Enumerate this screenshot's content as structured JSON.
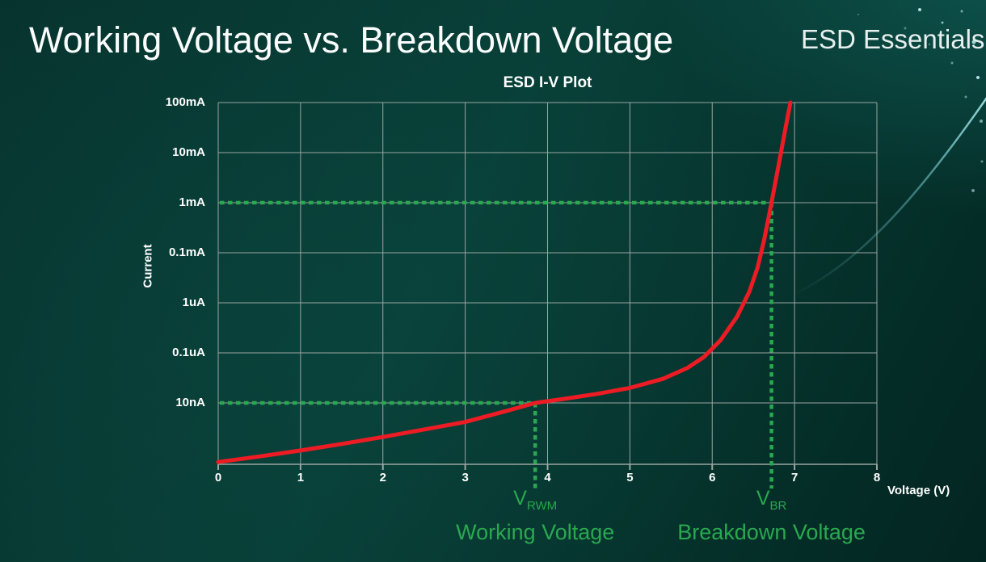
{
  "slide": {
    "title": "Working Voltage vs. Breakdown Voltage",
    "brand": "ESD Essentials"
  },
  "chart": {
    "colors": {
      "curve": "#ed1c24",
      "annotation": "#2aa84f",
      "grid": "#9aa5a2",
      "text": "#ffffff",
      "decor_cyan": "#7fd8e0",
      "background_top": "#0a423c",
      "background_bottom": "#03211f"
    }
  },
  "chart_data": {
    "type": "line",
    "title": "ESD I-V Plot",
    "xlabel": "Voltage (V)",
    "ylabel": "Current",
    "x_ticks": [
      0,
      1,
      2,
      3,
      4,
      5,
      6,
      7,
      8
    ],
    "xlim": [
      0,
      8
    ],
    "y_tick_labels": [
      "100mA",
      "10mA",
      "1mA",
      "0.1mA",
      "1uA",
      "0.1uA",
      "10nA"
    ],
    "y_scale": "logarithmic; one gridline per labeled decade, level 0 = 100mA (top), level 6 = 10nA",
    "grid": "on",
    "series": [
      {
        "name": "ESD I-V curve",
        "note": "points are [voltage_V, y_level] where y_level is position on the log current axis (0=100mA ... 6=10nA, 7.2=bottom axis)",
        "points": [
          [
            0,
            7.18
          ],
          [
            0.5,
            7.07
          ],
          [
            1,
            6.95
          ],
          [
            1.5,
            6.82
          ],
          [
            2,
            6.68
          ],
          [
            2.5,
            6.53
          ],
          [
            3,
            6.38
          ],
          [
            3.5,
            6.16
          ],
          [
            3.85,
            6.0
          ],
          [
            4.2,
            5.92
          ],
          [
            4.6,
            5.82
          ],
          [
            5.0,
            5.7
          ],
          [
            5.4,
            5.52
          ],
          [
            5.7,
            5.3
          ],
          [
            5.9,
            5.08
          ],
          [
            6.1,
            4.75
          ],
          [
            6.3,
            4.28
          ],
          [
            6.45,
            3.78
          ],
          [
            6.55,
            3.3
          ],
          [
            6.63,
            2.75
          ],
          [
            6.72,
            2.0
          ],
          [
            6.8,
            1.3
          ],
          [
            6.88,
            0.6
          ],
          [
            6.95,
            0.0
          ]
        ]
      }
    ],
    "annotations": [
      {
        "id": "vrwm",
        "label": "V",
        "sub": "RWM",
        "caption": "Working Voltage",
        "voltage": 3.85,
        "current_level": "10nA"
      },
      {
        "id": "vbr",
        "label": "V",
        "sub": "BR",
        "caption": "Breakdown Voltage",
        "voltage": 6.72,
        "current_level": "1mA"
      }
    ]
  }
}
